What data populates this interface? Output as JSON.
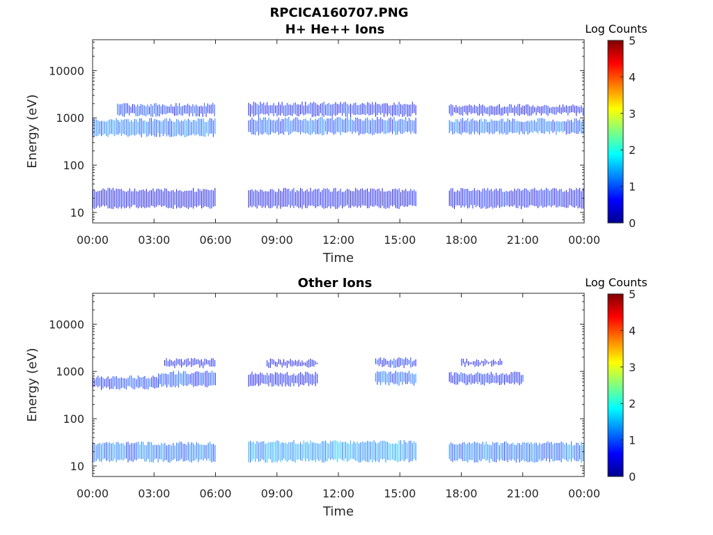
{
  "figure": {
    "filename": "RPCICA160707.PNG"
  },
  "chart_data": [
    {
      "type": "heatmap",
      "title": "H+ He++ Ions",
      "xlabel": "Time",
      "ylabel": "Energy (eV)",
      "x_ticks": [
        "00:00",
        "03:00",
        "06:00",
        "09:00",
        "12:00",
        "15:00",
        "18:00",
        "21:00",
        "00:00"
      ],
      "x_range_hours": [
        0,
        24
      ],
      "y_scale": "log",
      "y_range": [
        6,
        45000
      ],
      "y_ticks": [
        {
          "value": 10,
          "label": "10"
        },
        {
          "value": 100,
          "label": "100"
        },
        {
          "value": 1000,
          "label": "1000"
        },
        {
          "value": 10000,
          "label": "10000"
        }
      ],
      "colorbar": {
        "label": "Log Counts",
        "range": [
          0,
          5
        ],
        "ticks": [
          "0",
          "1",
          "2",
          "3",
          "4",
          "5"
        ],
        "colormap": "jet"
      },
      "data_gaps_hours": [
        [
          6.0,
          7.6
        ],
        [
          15.8,
          17.4
        ]
      ],
      "bands": [
        {
          "t": [
            0.0,
            6.0
          ],
          "e": [
            430,
            900
          ],
          "level": 1.1
        },
        {
          "t": [
            1.2,
            6.0
          ],
          "e": [
            1150,
            1900
          ],
          "level": 0.8
        },
        {
          "t": [
            0.0,
            6.0
          ],
          "e": [
            13,
            30
          ],
          "level": 0.5
        },
        {
          "t": [
            7.6,
            15.8
          ],
          "e": [
            470,
            950
          ],
          "level": 1.0
        },
        {
          "t": [
            7.6,
            15.8
          ],
          "e": [
            1150,
            2000
          ],
          "level": 0.7
        },
        {
          "t": [
            7.6,
            15.8
          ],
          "e": [
            13,
            30
          ],
          "level": 0.5
        },
        {
          "t": [
            17.4,
            24.0
          ],
          "e": [
            480,
            900
          ],
          "level": 1.0
        },
        {
          "t": [
            17.4,
            24.0
          ],
          "e": [
            1200,
            1800
          ],
          "level": 0.6
        },
        {
          "t": [
            17.4,
            24.0
          ],
          "e": [
            13,
            30
          ],
          "level": 0.6
        }
      ]
    },
    {
      "type": "heatmap",
      "title": "Other Ions",
      "xlabel": "Time",
      "ylabel": "Energy (eV)",
      "x_ticks": [
        "00:00",
        "03:00",
        "06:00",
        "09:00",
        "12:00",
        "15:00",
        "18:00",
        "21:00",
        "00:00"
      ],
      "x_range_hours": [
        0,
        24
      ],
      "y_scale": "log",
      "y_range": [
        6,
        45000
      ],
      "y_ticks": [
        {
          "value": 10,
          "label": "10"
        },
        {
          "value": 100,
          "label": "100"
        },
        {
          "value": 1000,
          "label": "1000"
        },
        {
          "value": 10000,
          "label": "10000"
        }
      ],
      "colorbar": {
        "label": "Log Counts",
        "range": [
          0,
          5
        ],
        "ticks": [
          "0",
          "1",
          "2",
          "3",
          "4",
          "5"
        ],
        "colormap": "jet"
      },
      "data_gaps_hours": [
        [
          6.0,
          7.6
        ],
        [
          15.8,
          17.4
        ]
      ],
      "bands": [
        {
          "t": [
            0.0,
            3.2
          ],
          "e": [
            450,
            750
          ],
          "level": 0.8
        },
        {
          "t": [
            3.2,
            6.0
          ],
          "e": [
            500,
            950
          ],
          "level": 0.9
        },
        {
          "t": [
            3.5,
            6.0
          ],
          "e": [
            1300,
            1750
          ],
          "level": 0.6
        },
        {
          "t": [
            7.6,
            11.0
          ],
          "e": [
            520,
            900
          ],
          "level": 0.6
        },
        {
          "t": [
            8.5,
            11.0
          ],
          "e": [
            1300,
            1700
          ],
          "level": 0.5
        },
        {
          "t": [
            13.8,
            15.8
          ],
          "e": [
            550,
            950
          ],
          "level": 1.0
        },
        {
          "t": [
            13.8,
            15.8
          ],
          "e": [
            1300,
            1800
          ],
          "level": 0.7
        },
        {
          "t": [
            17.4,
            21.0
          ],
          "e": [
            550,
            900
          ],
          "level": 0.7
        },
        {
          "t": [
            18.0,
            20.0
          ],
          "e": [
            1350,
            1700
          ],
          "level": 0.5
        },
        {
          "t": [
            0.0,
            6.0
          ],
          "e": [
            13,
            30
          ],
          "level": 1.1
        },
        {
          "t": [
            7.6,
            15.8
          ],
          "e": [
            13,
            32
          ],
          "level": 1.3
        },
        {
          "t": [
            17.4,
            24.0
          ],
          "e": [
            13,
            30
          ],
          "level": 1.1
        }
      ]
    }
  ]
}
